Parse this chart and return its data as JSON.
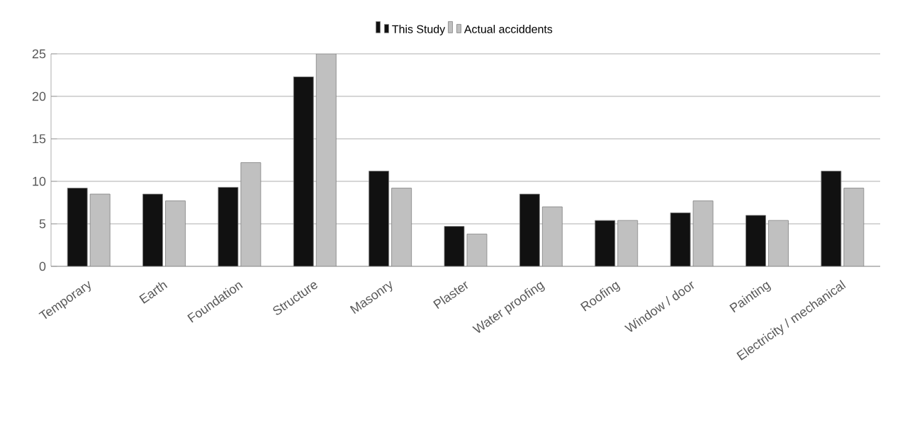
{
  "chart_data": {
    "type": "bar",
    "categories": [
      "Temporary",
      "Earth",
      "Foundation",
      "Structure",
      "Masonry",
      "Plaster",
      "Water proofing",
      "Roofing",
      "Window / door",
      "Painting",
      "Electricity / mechanical"
    ],
    "series": [
      {
        "name": "This Study",
        "color": "#111111",
        "values": [
          9.2,
          8.5,
          9.3,
          22.3,
          11.2,
          4.7,
          8.5,
          5.4,
          6.3,
          6,
          11.2
        ]
      },
      {
        "name": "Actual acciddents",
        "color": "#c0c0c0",
        "values": [
          8.5,
          7.7,
          12.2,
          25,
          9.2,
          3.8,
          7,
          5.4,
          7.7,
          5.4,
          9.2
        ]
      }
    ],
    "ylim": [
      0,
      25
    ],
    "yticks": [
      0,
      5,
      10,
      15,
      20,
      25
    ],
    "grid": "y",
    "legend": "top"
  }
}
